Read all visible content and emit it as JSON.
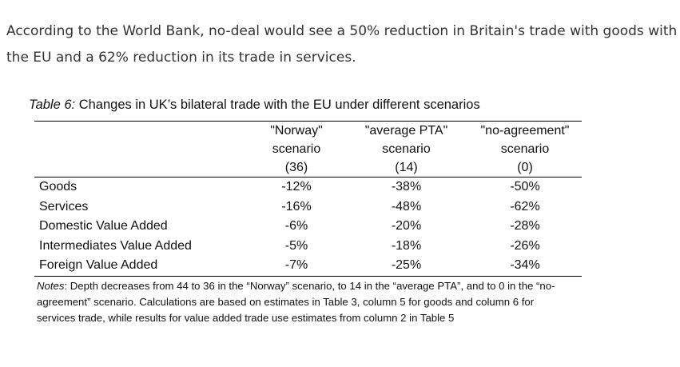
{
  "intro_text": "According to the World Bank, no-deal would see a 50% reduction in Britain's trade with goods with the EU and a 62% reduction in its trade in services.",
  "table": {
    "caption_prefix": "Table 6:",
    "caption_text": " Changes in UK’s bilateral trade with the EU under different scenarios",
    "headers": [
      {
        "line1": "\"Norway\"",
        "line2": "scenario",
        "line3": "(36)"
      },
      {
        "line1": "\"average PTA\"",
        "line2": "scenario",
        "line3": "(14)"
      },
      {
        "line1": "\"no-agreement\"",
        "line2": "scenario",
        "line3": "(0)"
      }
    ],
    "rows": [
      {
        "label": "Goods",
        "values": [
          "-12%",
          "-38%",
          "-50%"
        ]
      },
      {
        "label": "Services",
        "values": [
          "-16%",
          "-48%",
          "-62%"
        ]
      },
      {
        "label": "Domestic Value Added",
        "values": [
          "-6%",
          "-20%",
          "-28%"
        ]
      },
      {
        "label": "Intermediates Value Added",
        "values": [
          "-5%",
          "-18%",
          "-26%"
        ]
      },
      {
        "label": "Foreign Value Added",
        "values": [
          "-7%",
          "-25%",
          "-34%"
        ]
      }
    ],
    "notes_prefix": "Notes",
    "notes_text": ": Depth decreases from 44 to 36 in the “Norway” scenario, to 14 in the “average PTA”, and to 0 in the “no-agreement” scenario. Calculations are based on estimates in Table 3, column 5 for goods and column 6 for services trade, while results for value added trade use estimates from column 2 in Table 5"
  }
}
